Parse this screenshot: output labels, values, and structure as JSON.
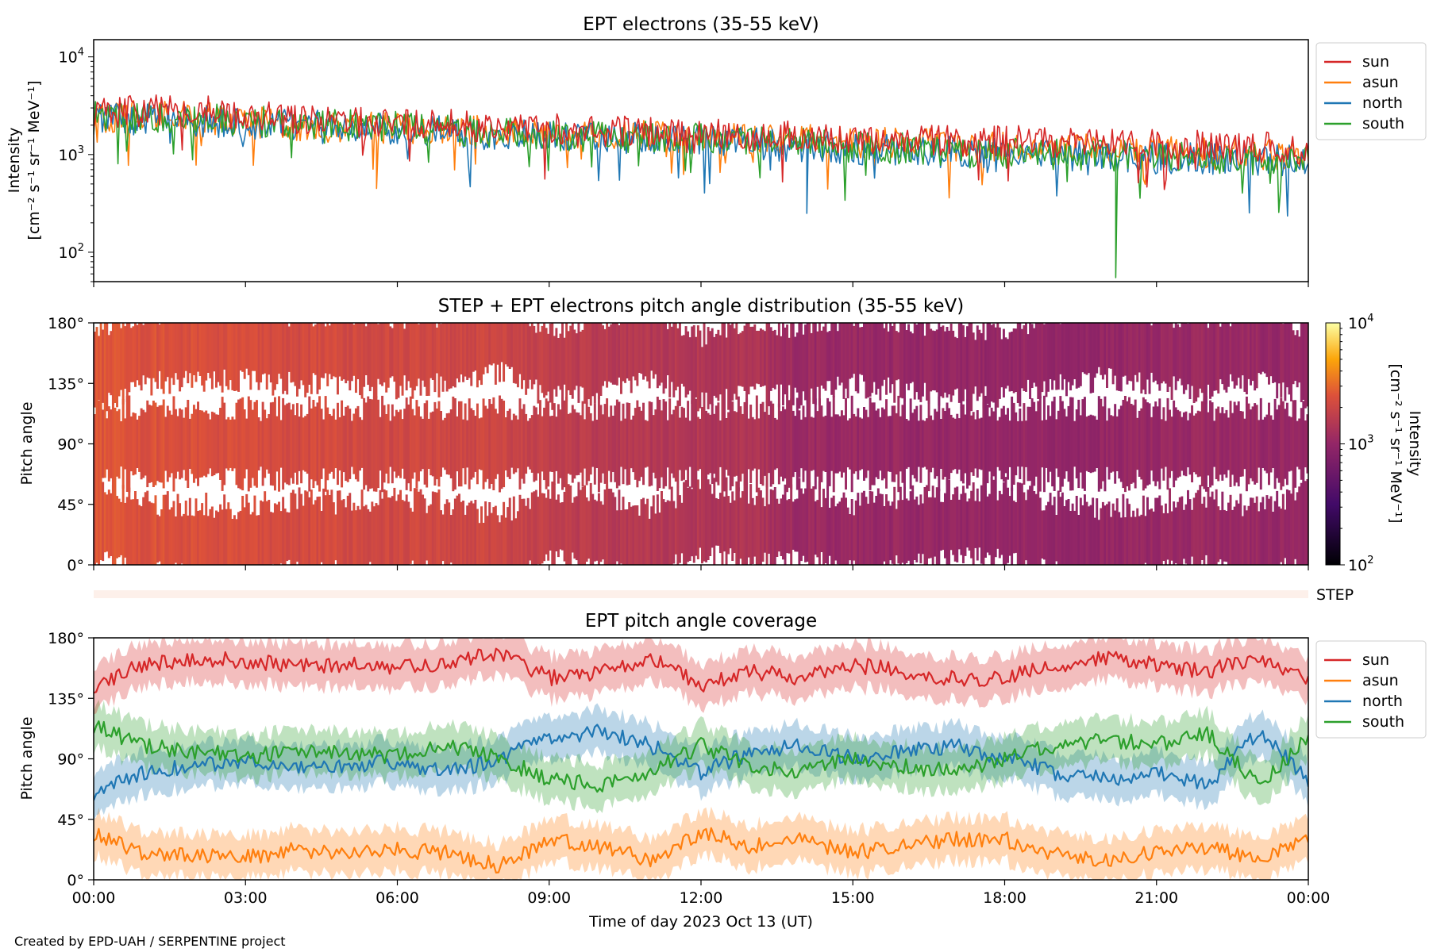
{
  "colors": {
    "sun": "#d62728",
    "asun": "#ff7f0e",
    "north": "#1f77b4",
    "south": "#2ca02c",
    "step_bar": "#fdf0ea"
  },
  "footer": "Created by EPD-UAH / SERPENTINE project",
  "step_label": "STEP",
  "chart_data": [
    {
      "type": "line",
      "title": "EPT electrons (35-55 keV)",
      "ylabel_line1": "Intensity",
      "ylabel_line2": "[cm⁻² s⁻¹ sr⁻¹ MeV⁻¹]",
      "yscale": "log",
      "ylim": [
        50,
        15000
      ],
      "yticks": [
        {
          "value": 100,
          "base": "10",
          "exp": "2"
        },
        {
          "value": 1000,
          "base": "10",
          "exp": "3"
        },
        {
          "value": 10000,
          "base": "10",
          "exp": "4"
        }
      ],
      "xlim": [
        0,
        24
      ],
      "legend": "outside-right",
      "series": [
        {
          "name": "sun",
          "color": "#d62728",
          "x": [
            0,
            1,
            2,
            3,
            4,
            5,
            6,
            7,
            8,
            9,
            10,
            11,
            12,
            13,
            14,
            15,
            16,
            17,
            18,
            19,
            20,
            21,
            22,
            23,
            24
          ],
          "values": [
            2700,
            2800,
            2900,
            2500,
            2300,
            2200,
            2100,
            2000,
            1900,
            1800,
            1750,
            1700,
            1650,
            1600,
            1550,
            1500,
            1450,
            1400,
            1380,
            1350,
            1300,
            1250,
            1220,
            1200,
            1150
          ]
        },
        {
          "name": "asun",
          "color": "#ff7f0e",
          "x": [
            0,
            1,
            2,
            3,
            4,
            5,
            6,
            7,
            8,
            9,
            10,
            11,
            12,
            13,
            14,
            15,
            16,
            17,
            18,
            19,
            20,
            21,
            22,
            23,
            24
          ],
          "values": [
            2400,
            2500,
            2400,
            2200,
            2000,
            1900,
            1850,
            1800,
            1700,
            1650,
            1600,
            1550,
            1500,
            1450,
            1400,
            1350,
            1300,
            1250,
            1200,
            1150,
            1100,
            1080,
            1050,
            1000,
            980
          ],
          "min_annotation": {
            "x": 5.6,
            "value": 450
          }
        },
        {
          "name": "north",
          "color": "#1f77b4",
          "x": [
            0,
            1,
            2,
            3,
            4,
            5,
            6,
            7,
            8,
            9,
            10,
            11,
            12,
            13,
            14,
            15,
            16,
            17,
            18,
            19,
            20,
            21,
            22,
            23,
            24
          ],
          "values": [
            2300,
            2300,
            2200,
            2100,
            2000,
            1900,
            1800,
            1700,
            1600,
            1550,
            1500,
            1450,
            1400,
            1300,
            1200,
            1150,
            1100,
            1050,
            1000,
            980,
            950,
            920,
            900,
            880,
            860
          ],
          "min_annotation": {
            "x": 14.1,
            "value": 250
          }
        },
        {
          "name": "south",
          "color": "#2ca02c",
          "x": [
            0,
            1,
            2,
            3,
            4,
            5,
            6,
            7,
            8,
            9,
            10,
            11,
            12,
            13,
            14,
            15,
            16,
            17,
            18,
            19,
            20,
            21,
            22,
            23,
            24
          ],
          "values": [
            2400,
            2400,
            2300,
            2200,
            2100,
            2000,
            1900,
            1800,
            1700,
            1600,
            1550,
            1500,
            1450,
            1350,
            1300,
            1200,
            1150,
            1100,
            1050,
            1000,
            980,
            950,
            920,
            900,
            880
          ],
          "min_annotation": {
            "x": 20.2,
            "value": 55
          }
        }
      ]
    },
    {
      "type": "heatmap",
      "title": "STEP + EPT electrons pitch angle distribution (35-55 keV)",
      "ylabel": "Pitch angle",
      "ylim": [
        0,
        180
      ],
      "yticks": [
        "0°",
        "45°",
        "90°",
        "135°",
        "180°"
      ],
      "yvalues": [
        0,
        45,
        90,
        135,
        180
      ],
      "xlim": [
        0,
        24
      ],
      "colorbar": {
        "label": "Intensity",
        "label2": "[cm⁻² s⁻¹ sr⁻¹ MeV⁻¹]",
        "scale": "log",
        "range": [
          100,
          10000
        ],
        "ticks": [
          {
            "value": 100,
            "base": "10",
            "exp": "2"
          },
          {
            "value": 1000,
            "base": "10",
            "exp": "3"
          },
          {
            "value": 10000,
            "base": "10",
            "exp": "4"
          }
        ]
      },
      "level_over_time": {
        "x": [
          0,
          2,
          4,
          6,
          8,
          9,
          11,
          13,
          14,
          16,
          18,
          20,
          22,
          24
        ],
        "values": [
          2500,
          2400,
          2200,
          2100,
          2000,
          1700,
          1500,
          1400,
          1100,
          1050,
          1000,
          1000,
          1100,
          1000
        ]
      }
    },
    {
      "type": "line",
      "title": "EPT pitch angle coverage",
      "ylabel": "Pitch angle",
      "xlabel": "Time of day 2023 Oct 13 (UT)",
      "ylim": [
        0,
        180
      ],
      "yticks": [
        "0°",
        "45°",
        "90°",
        "135°",
        "180°"
      ],
      "yvalues": [
        0,
        45,
        90,
        135,
        180
      ],
      "xlim": [
        0,
        24
      ],
      "xticks": [
        "00:00",
        "03:00",
        "06:00",
        "09:00",
        "12:00",
        "15:00",
        "18:00",
        "21:00",
        "00:00"
      ],
      "legend": "outside-right",
      "series": [
        {
          "name": "sun",
          "color": "#d62728",
          "x": [
            0,
            1,
            2,
            3,
            4,
            5,
            6,
            7,
            8,
            9,
            10,
            11,
            12,
            13,
            14,
            15,
            16,
            17,
            18,
            19,
            20,
            21,
            22,
            23,
            24
          ],
          "values": [
            145,
            160,
            165,
            163,
            160,
            160,
            158,
            160,
            170,
            150,
            155,
            165,
            145,
            155,
            150,
            160,
            155,
            150,
            150,
            160,
            165,
            160,
            155,
            165,
            150
          ]
        },
        {
          "name": "asun",
          "color": "#ff7f0e",
          "x": [
            0,
            1,
            2,
            3,
            4,
            5,
            6,
            7,
            8,
            9,
            10,
            11,
            12,
            13,
            14,
            15,
            16,
            17,
            18,
            19,
            20,
            21,
            22,
            23,
            24
          ],
          "values": [
            35,
            20,
            18,
            17,
            22,
            20,
            22,
            20,
            10,
            30,
            25,
            15,
            35,
            25,
            30,
            20,
            25,
            30,
            30,
            20,
            15,
            20,
            25,
            15,
            30
          ]
        },
        {
          "name": "north",
          "color": "#1f77b4",
          "x": [
            0,
            1,
            2,
            3,
            4,
            5,
            6,
            7,
            8,
            9,
            10,
            11,
            12,
            13,
            14,
            15,
            16,
            17,
            18,
            19,
            20,
            21,
            22,
            23,
            24
          ],
          "values": [
            65,
            80,
            85,
            88,
            85,
            85,
            88,
            80,
            90,
            105,
            110,
            100,
            80,
            95,
            100,
            90,
            95,
            100,
            90,
            80,
            75,
            80,
            70,
            110,
            75
          ]
        },
        {
          "name": "south",
          "color": "#2ca02c",
          "x": [
            0,
            1,
            2,
            3,
            4,
            5,
            6,
            7,
            8,
            9,
            10,
            11,
            12,
            13,
            14,
            15,
            16,
            17,
            18,
            19,
            20,
            21,
            22,
            23,
            24
          ],
          "values": [
            115,
            100,
            95,
            92,
            95,
            95,
            92,
            100,
            90,
            75,
            70,
            80,
            100,
            85,
            80,
            90,
            85,
            80,
            90,
            100,
            105,
            100,
            110,
            70,
            105
          ]
        }
      ]
    }
  ]
}
